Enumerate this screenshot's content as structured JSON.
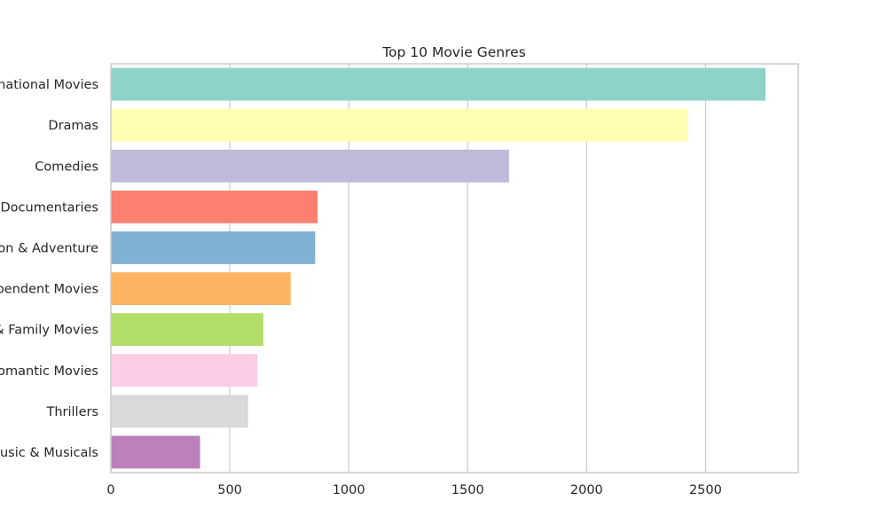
{
  "chart_data": {
    "type": "bar",
    "orientation": "horizontal",
    "title": "Top 10 Movie Genres",
    "xlabel": "",
    "ylabel": "",
    "categories": [
      "International Movies",
      "Dramas",
      "Comedies",
      "Documentaries",
      "Action & Adventure",
      "Independent Movies",
      "Children & Family Movies",
      "Romantic Movies",
      "Thrillers",
      "Music & Musicals"
    ],
    "values": [
      2752,
      2427,
      1674,
      869,
      859,
      756,
      641,
      616,
      577,
      375
    ],
    "colors": [
      "#8dd3c7",
      "#ffffb3",
      "#bebada",
      "#fb8072",
      "#80b1d3",
      "#fdb462",
      "#b3de69",
      "#fccde5",
      "#d9d9d9",
      "#bc80bd"
    ],
    "xlim": [
      0,
      2890
    ],
    "xticks": [
      0,
      500,
      1000,
      1500,
      2000,
      2500
    ],
    "grid": "x-axis",
    "legend": "none"
  }
}
